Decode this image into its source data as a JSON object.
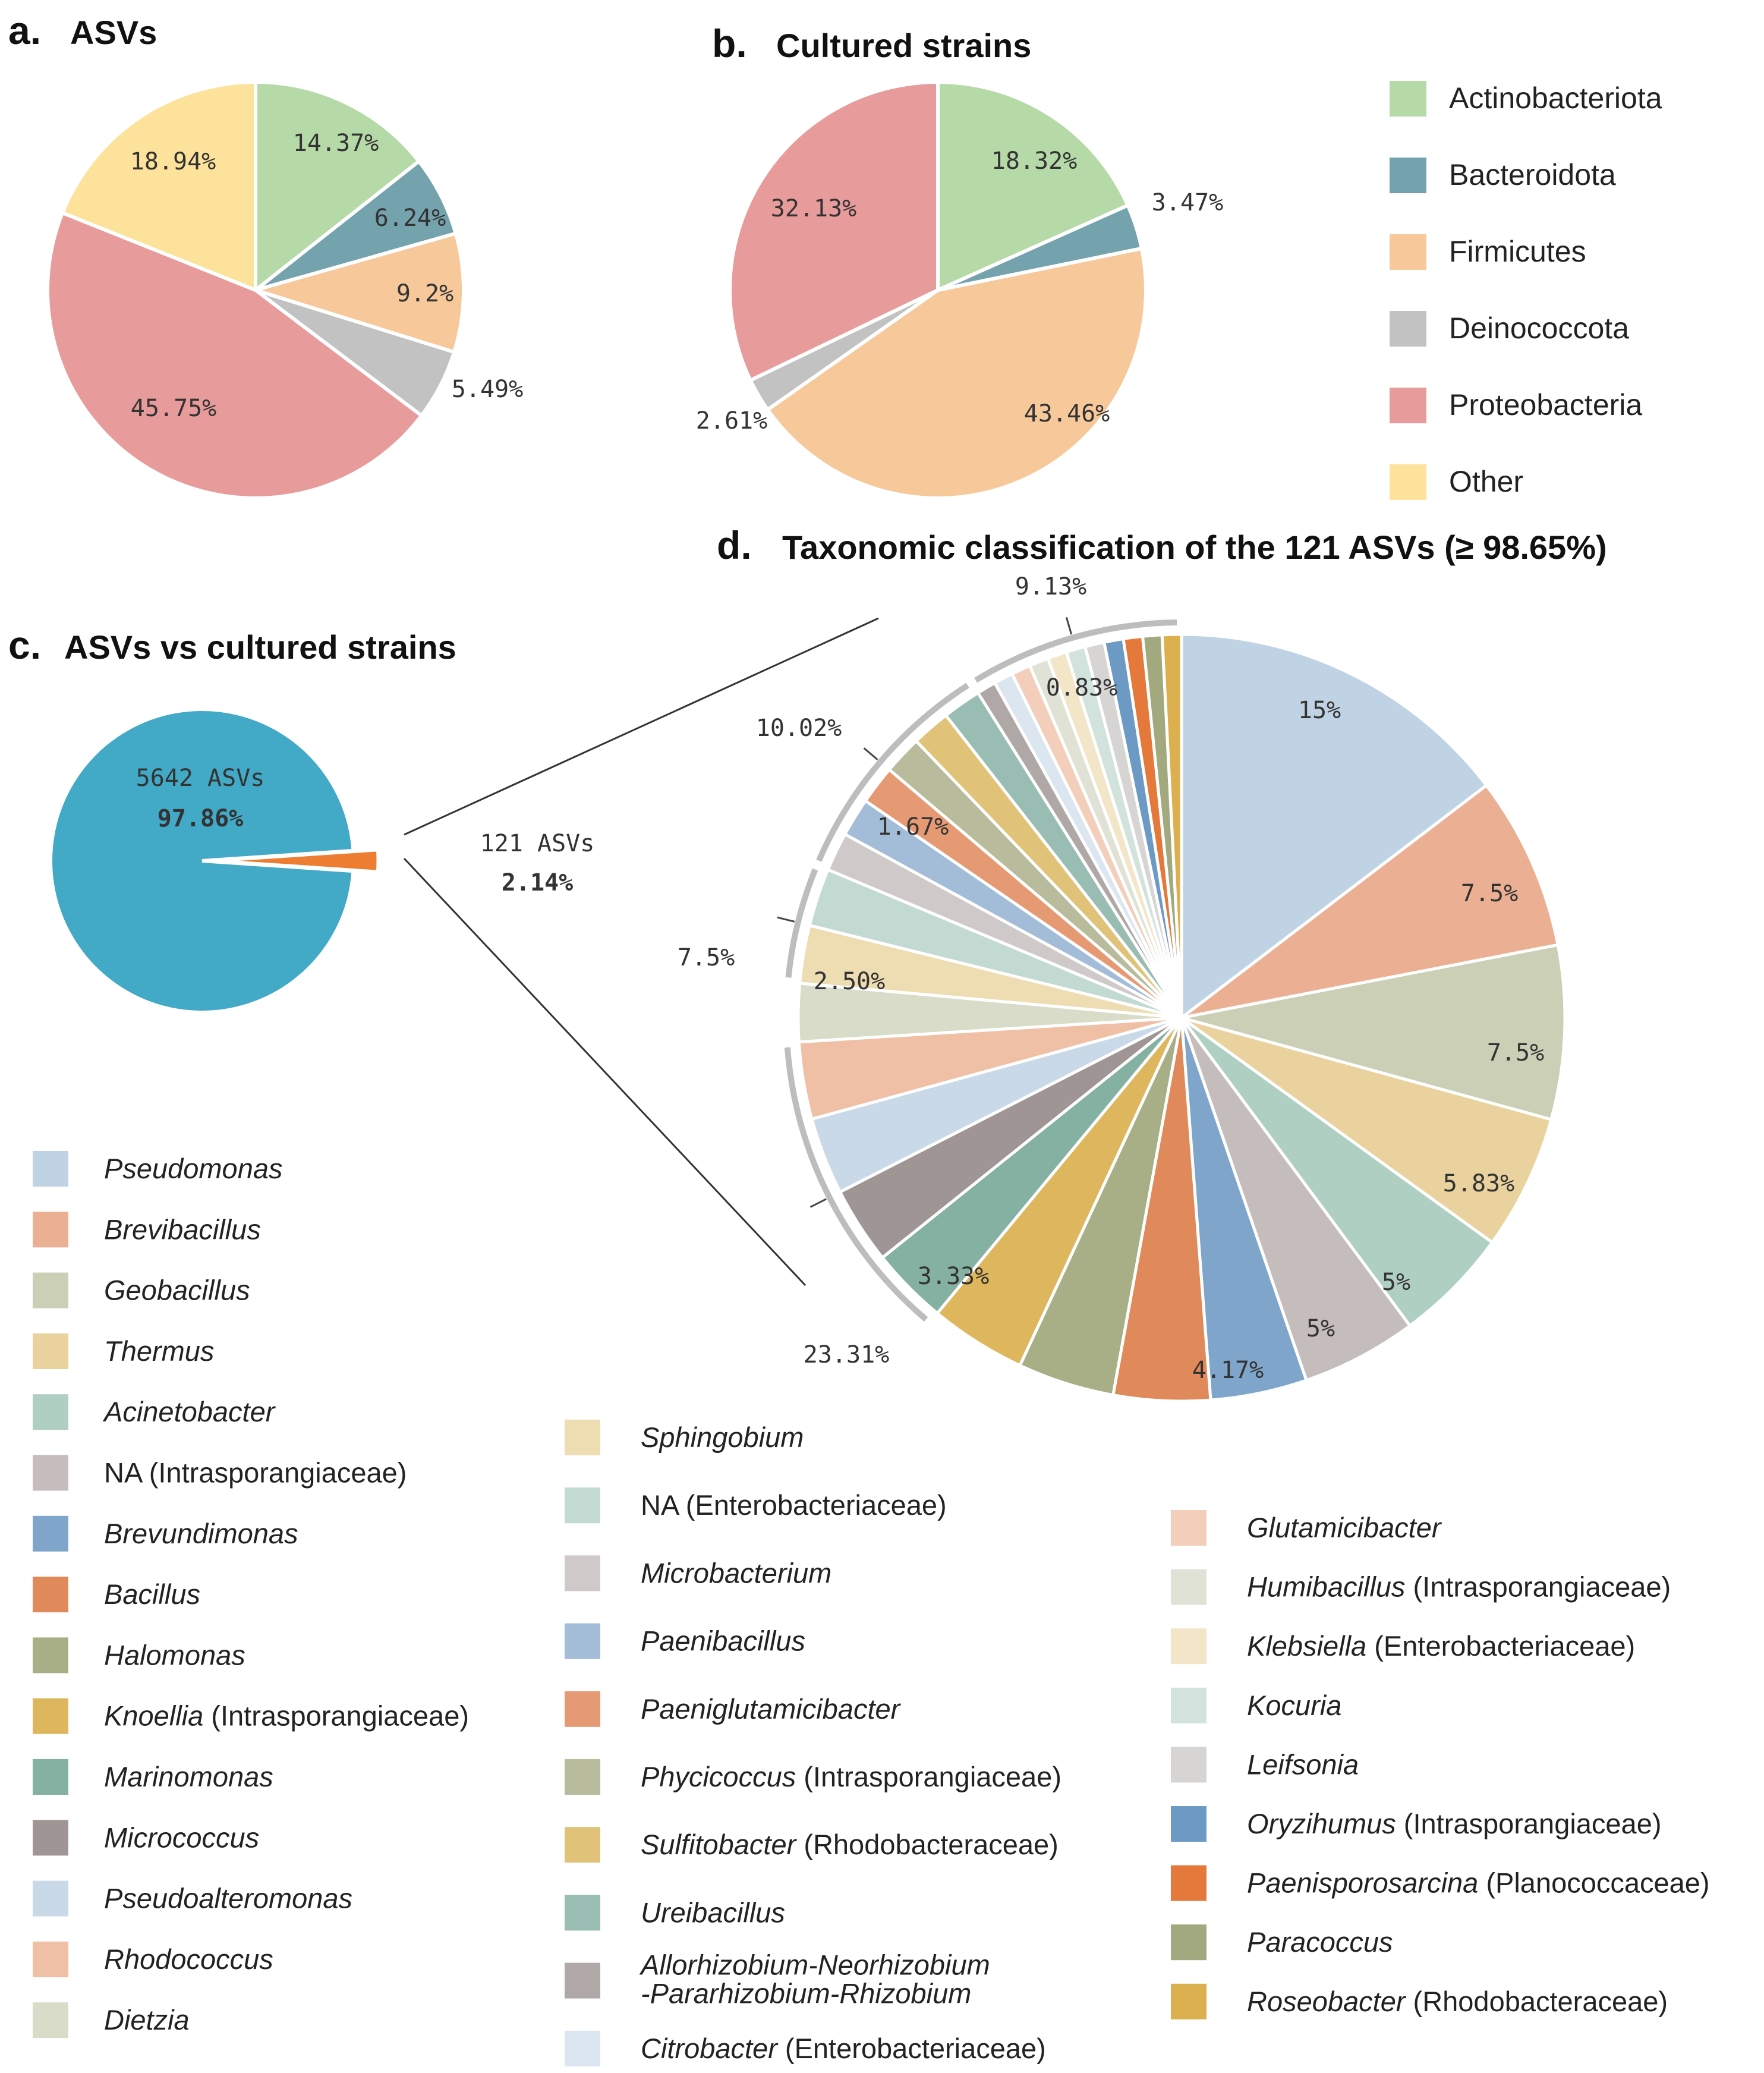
{
  "panels": {
    "a": {
      "letter": "a.",
      "title": "ASVs"
    },
    "b": {
      "letter": "b.",
      "title": "Cultured strains"
    },
    "c": {
      "letter": "c.",
      "title": "ASVs vs cultured strains"
    },
    "d": {
      "letter": "d.",
      "title": "Taxonomic classification of the 121 ASVs (≥ 98.65%)"
    }
  },
  "phylum_legend": [
    {
      "label": "Actinobacteriota",
      "color": "#b6d9a8"
    },
    {
      "label": "Bacteroidota",
      "color": "#75a3ad"
    },
    {
      "label": "Firmicutes",
      "color": "#f6c89a"
    },
    {
      "label": "Deinococcota",
      "color": "#c2c2c2"
    },
    {
      "label": "Proteobacteria",
      "color": "#e89b9b"
    },
    {
      "label": "Other",
      "color": "#fde29b"
    }
  ],
  "c_labels": {
    "big_count": "5642 ASVs",
    "big_pct": "97.86%",
    "small_count": "121 ASVs",
    "small_pct": "2.14%"
  },
  "d_group_labels": [
    "9.13%",
    "10.02%",
    "7.5%",
    "23.31%"
  ],
  "chart_data": [
    {
      "type": "pie",
      "id": "a",
      "title": "ASVs",
      "slices": [
        {
          "label": "Actinobacteriota",
          "value": 14.37,
          "text": "14.37%"
        },
        {
          "label": "Bacteroidota",
          "value": 6.24,
          "text": "6.24%"
        },
        {
          "label": "Firmicutes",
          "value": 9.2,
          "text": "9.2%"
        },
        {
          "label": "Deinococcota",
          "value": 5.49,
          "text": "5.49%"
        },
        {
          "label": "Proteobacteria",
          "value": 45.75,
          "text": "45.75%"
        },
        {
          "label": "Other",
          "value": 18.94,
          "text": "18.94%"
        }
      ]
    },
    {
      "type": "pie",
      "id": "b",
      "title": "Cultured strains",
      "slices": [
        {
          "label": "Actinobacteriota",
          "value": 18.32,
          "text": "18.32%"
        },
        {
          "label": "Bacteroidota",
          "value": 3.47,
          "text": "3.47%"
        },
        {
          "label": "Firmicutes",
          "value": 43.46,
          "text": "43.46%"
        },
        {
          "label": "Deinococcota",
          "value": 2.61,
          "text": "2.61%"
        },
        {
          "label": "Proteobacteria",
          "value": 32.13,
          "text": "32.13%"
        }
      ]
    },
    {
      "type": "pie",
      "id": "c",
      "title": "ASVs vs cultured strains",
      "slices": [
        {
          "label": "5642 ASVs",
          "value": 97.86,
          "text": "97.86%",
          "color": "#42a9c6"
        },
        {
          "label": "121 ASVs",
          "value": 2.14,
          "text": "2.14%",
          "color": "#ed7d31"
        }
      ]
    },
    {
      "type": "pie",
      "id": "d",
      "title": "Taxonomic classification of the 121 ASVs (≥ 98.65%)",
      "slices": [
        {
          "label": "Pseudomonas",
          "value": 15,
          "text": "15%",
          "color": "#c0d3e5"
        },
        {
          "label": "Brevibacillus",
          "value": 7.5,
          "text": "7.5%",
          "color": "#ebb094"
        },
        {
          "label": "Geobacillus",
          "value": 7.5,
          "text": "7.5%",
          "color": "#cbcfb6"
        },
        {
          "label": "Thermus",
          "value": 5.83,
          "text": "5.83%",
          "color": "#ead29f"
        },
        {
          "label": "Acinetobacter",
          "value": 5,
          "text": "5%",
          "color": "#b0cfc3"
        },
        {
          "label": "NA (Intrasporangiaceae)",
          "value": 5,
          "text": "5%",
          "color": "#c5bcbc"
        },
        {
          "label": "Brevundimonas",
          "value": 4.17,
          "text": "4.17%",
          "color": "#7fa6ca"
        },
        {
          "label": "Bacillus",
          "value": 4.17,
          "text": "",
          "color": "#e0895a"
        },
        {
          "label": "Halomonas",
          "value": 4.17,
          "text": "",
          "color": "#a8ae86"
        },
        {
          "label": "Knoellia",
          "value": 4.17,
          "text": "",
          "color": "#deb65d"
        },
        {
          "label": "Marinomonas",
          "value": 3.33,
          "text": "3.33%",
          "color": "#85b1a2"
        },
        {
          "label": "Micrococcus",
          "value": 3.33,
          "text": "",
          "color": "#9f9595"
        },
        {
          "label": "Pseudoalteromonas",
          "value": 3.33,
          "text": "",
          "color": "#cad9e8"
        },
        {
          "label": "Rhodococcus",
          "value": 3.33,
          "text": "",
          "color": "#efbfa6"
        },
        {
          "label": "Dietzia",
          "value": 2.5,
          "text": "",
          "color": "#d9dcc8"
        },
        {
          "label": "Sphingobium",
          "value": 2.5,
          "text": "2.50%",
          "color": "#eedcb2"
        },
        {
          "label": "NA (Enterobacteriaceae)",
          "value": 2.5,
          "text": "",
          "color": "#c3dad2"
        },
        {
          "label": "Microbacterium",
          "value": 1.67,
          "text": "",
          "color": "#cfc9c9"
        },
        {
          "label": "Paenibacillus",
          "value": 1.67,
          "text": "",
          "color": "#a3bdd8"
        },
        {
          "label": "Paeniglutamicibacter",
          "value": 1.67,
          "text": "1.67%",
          "color": "#e69a74"
        },
        {
          "label": "Phycicoccus",
          "value": 1.67,
          "text": "",
          "color": "#b8bb9c"
        },
        {
          "label": "Sulfitobacter",
          "value": 1.67,
          "text": "",
          "color": "#e0c379"
        },
        {
          "label": "Ureibacillus",
          "value": 1.67,
          "text": "",
          "color": "#99bdb2"
        },
        {
          "label": "Allorhizobium-Neorhizobium-Pararhizobium-Rhizobium",
          "value": 0.83,
          "text": "",
          "color": "#b0a7a7"
        },
        {
          "label": "Citrobacter",
          "value": 0.83,
          "text": "",
          "color": "#dce6f0"
        },
        {
          "label": "Glutamicibacter",
          "value": 0.83,
          "text": "",
          "color": "#f3cfbb"
        },
        {
          "label": "Humibacillus",
          "value": 0.83,
          "text": "",
          "color": "#e1e2d6"
        },
        {
          "label": "Klebsiella",
          "value": 0.83,
          "text": "",
          "color": "#f3e5c8"
        },
        {
          "label": "Kocuria",
          "value": 0.83,
          "text": "0.83%",
          "color": "#d2e2dc"
        },
        {
          "label": "Leifsonia",
          "value": 0.83,
          "text": "",
          "color": "#d7d4d4"
        },
        {
          "label": "Oryzihumus",
          "value": 0.83,
          "text": "",
          "color": "#6d9ac4"
        },
        {
          "label": "Paenisporosarcina",
          "value": 0.83,
          "text": "",
          "color": "#e5783b"
        },
        {
          "label": "Paracoccus",
          "value": 0.83,
          "text": "",
          "color": "#a3a97f"
        },
        {
          "label": "Roseobacter",
          "value": 0.83,
          "text": "",
          "color": "#dcb04e"
        }
      ]
    }
  ],
  "genus_legend": [
    [
      {
        "genus": "Pseudomonas",
        "suffix": "",
        "color": "#c0d3e5"
      },
      {
        "genus": "Brevibacillus",
        "suffix": "",
        "color": "#ebb094"
      },
      {
        "genus": "Geobacillus",
        "suffix": "",
        "color": "#cbcfb6"
      },
      {
        "genus": "Thermus",
        "suffix": "",
        "color": "#ead29f"
      },
      {
        "genus": "Acinetobacter",
        "suffix": "",
        "color": "#b0cfc3"
      },
      {
        "genus": "",
        "suffix": "NA (Intrasporangiaceae)",
        "color": "#c5bcbc"
      },
      {
        "genus": "Brevundimonas",
        "suffix": "",
        "color": "#7fa6ca"
      },
      {
        "genus": "Bacillus",
        "suffix": "",
        "color": "#e0895a"
      },
      {
        "genus": "Halomonas",
        "suffix": "",
        "color": "#a8ae86"
      },
      {
        "genus": "Knoellia",
        "suffix": " (Intrasporangiaceae)",
        "color": "#deb65d"
      },
      {
        "genus": "Marinomonas",
        "suffix": "",
        "color": "#85b1a2"
      },
      {
        "genus": "Micrococcus",
        "suffix": "",
        "color": "#9f9595"
      },
      {
        "genus": "Pseudoalteromonas",
        "suffix": "",
        "color": "#cad9e8"
      },
      {
        "genus": "Rhodococcus",
        "suffix": "",
        "color": "#efbfa6"
      },
      {
        "genus": "Dietzia",
        "suffix": "",
        "color": "#d9dcc8"
      }
    ],
    [
      {
        "genus": "Sphingobium",
        "suffix": "",
        "color": "#eedcb2"
      },
      {
        "genus": "",
        "suffix": "NA (Enterobacteriaceae)",
        "color": "#c3dad2"
      },
      {
        "genus": "Microbacterium",
        "suffix": "",
        "color": "#cfc9c9"
      },
      {
        "genus": "Paenibacillus",
        "suffix": "",
        "color": "#a3bdd8"
      },
      {
        "genus": "Paeniglutamicibacter",
        "suffix": "",
        "color": "#e69a74"
      },
      {
        "genus": "Phycicoccus",
        "suffix": " (Intrasporangiaceae)",
        "color": "#b8bb9c"
      },
      {
        "genus": "Sulfitobacter",
        "suffix": " (Rhodobacteraceae)",
        "color": "#e0c379"
      },
      {
        "genus": "Ureibacillus",
        "suffix": "",
        "color": "#99bdb2"
      },
      {
        "genus": "Allorhizobium-Neorhizobium",
        "genus2": "-Pararhizobium-Rhizobium",
        "suffix": "",
        "color": "#b0a7a7"
      },
      {
        "genus": "Citrobacter",
        "suffix": " (Enterobacteriaceae)",
        "color": "#dce6f0"
      }
    ],
    [
      {
        "genus": "Glutamicibacter",
        "suffix": "",
        "color": "#f3cfbb"
      },
      {
        "genus": "Humibacillus",
        "suffix": " (Intrasporangiaceae)",
        "color": "#e1e2d6"
      },
      {
        "genus": "Klebsiella",
        "suffix": " (Enterobacteriaceae)",
        "color": "#f3e5c8"
      },
      {
        "genus": "Kocuria",
        "suffix": "",
        "color": "#d2e2dc"
      },
      {
        "genus": "Leifsonia",
        "suffix": "",
        "color": "#d7d4d4"
      },
      {
        "genus": "Oryzihumus",
        "suffix": " (Intrasporangiaceae)",
        "color": "#6d9ac4"
      },
      {
        "genus": "Paenisporosarcina",
        "suffix": " (Planococcaceae)",
        "color": "#e5783b"
      },
      {
        "genus": "Paracoccus",
        "suffix": "",
        "color": "#a3a97f"
      },
      {
        "genus": "Roseobacter",
        "suffix": " (Rhodobacteraceae)",
        "color": "#dcb04e"
      }
    ]
  ]
}
